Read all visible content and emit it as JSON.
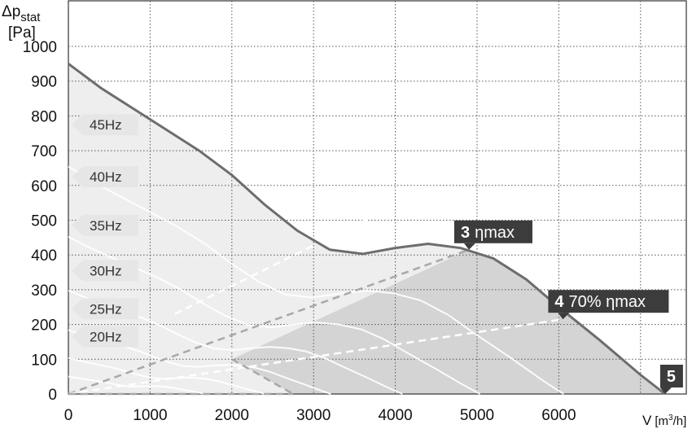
{
  "chart_data": {
    "type": "line",
    "title": "",
    "ylabel": {
      "main": "Δp",
      "sub": "stat",
      "unit": "[Pa]"
    },
    "xlabel": {
      "main": "V",
      "unit_pre": "[m",
      "unit_sup": "3",
      "unit_post": "/h]"
    },
    "xlim": [
      0,
      7600
    ],
    "ylim": [
      0,
      1000
    ],
    "x_ticks": [
      0,
      1000,
      2000,
      3000,
      4000,
      5000,
      6000
    ],
    "y_ticks": [
      0,
      100,
      200,
      300,
      400,
      500,
      600,
      700,
      800,
      900,
      1000
    ],
    "grid": true,
    "series": [
      {
        "name": "",
        "points": [
          [
            0,
            950
          ],
          [
            400,
            880
          ],
          [
            1000,
            790
          ],
          [
            1600,
            700
          ],
          [
            2000,
            630
          ],
          [
            2400,
            545
          ],
          [
            2800,
            470
          ],
          [
            3200,
            415
          ],
          [
            3600,
            403
          ],
          [
            4000,
            420
          ],
          [
            4400,
            432
          ],
          [
            4800,
            420
          ],
          [
            5200,
            390
          ],
          [
            5600,
            330
          ],
          [
            6000,
            250
          ],
          [
            6500,
            155
          ],
          [
            7000,
            55
          ],
          [
            7300,
            0
          ]
        ]
      }
    ],
    "frequency_labels": [
      {
        "label": "45Hz",
        "y": 775
      },
      {
        "label": "40Hz",
        "y": 625
      },
      {
        "label": "35Hz",
        "y": 485
      },
      {
        "label": "30Hz",
        "y": 355
      },
      {
        "label": "25Hz",
        "y": 245
      },
      {
        "label": "20Hz",
        "y": 165
      }
    ],
    "operating_points": [
      {
        "num": "3",
        "text": "ηmax",
        "x": 4900,
        "y": 415
      },
      {
        "num": "4",
        "text": "70% ηmax",
        "x": 6050,
        "y": 215
      },
      {
        "num": "5",
        "text": "",
        "x": 7300,
        "y": 0
      }
    ]
  }
}
